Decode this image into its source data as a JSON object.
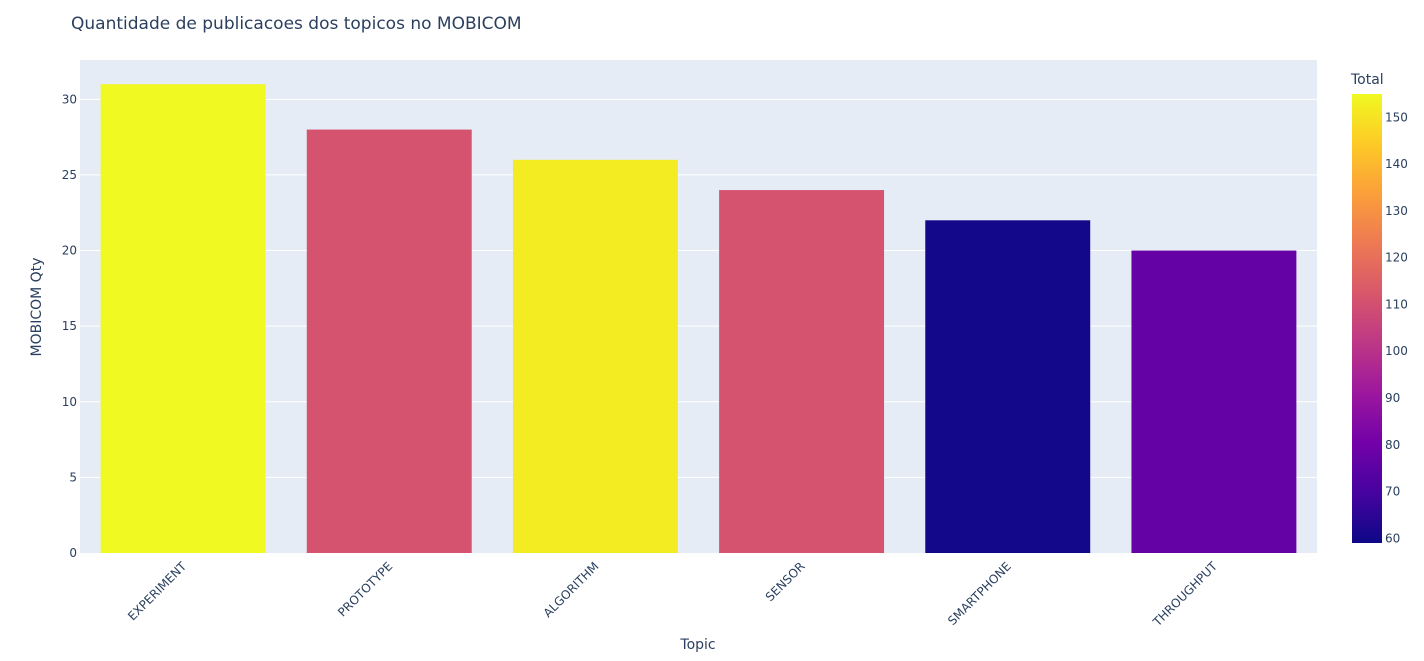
{
  "chart_data": {
    "type": "bar",
    "title": "Quantidade de publicacoes dos topicos no MOBICOM",
    "xlabel": "Topic",
    "ylabel": "MOBICOM  Qty",
    "categories": [
      "EXPERIMENT",
      "PROTOTYPE",
      "ALGORITHM",
      "SENSOR",
      "SMARTPHONE",
      "THROUGHPUT"
    ],
    "values": [
      31,
      28,
      26,
      24,
      22,
      20
    ],
    "color_values": [
      155,
      111,
      152,
      111,
      60,
      77
    ],
    "ylim": [
      0,
      32.6
    ],
    "yticks": [
      0,
      5,
      10,
      15,
      20,
      25,
      30
    ],
    "grid": true,
    "colorbar": {
      "title": "Total",
      "range": [
        59,
        155
      ],
      "ticks": [
        60,
        70,
        80,
        90,
        100,
        110,
        120,
        130,
        140,
        150
      ],
      "colorscale": [
        "#0d0887",
        "#46039f",
        "#7201a8",
        "#9c179e",
        "#bd3786",
        "#d8576b",
        "#ed7953",
        "#fb9f3a",
        "#fdca26",
        "#f0f921"
      ]
    }
  },
  "colors": {
    "plot_background": "#e5ecf6",
    "grid": "#ffffff",
    "text": "#2a3f5f"
  }
}
